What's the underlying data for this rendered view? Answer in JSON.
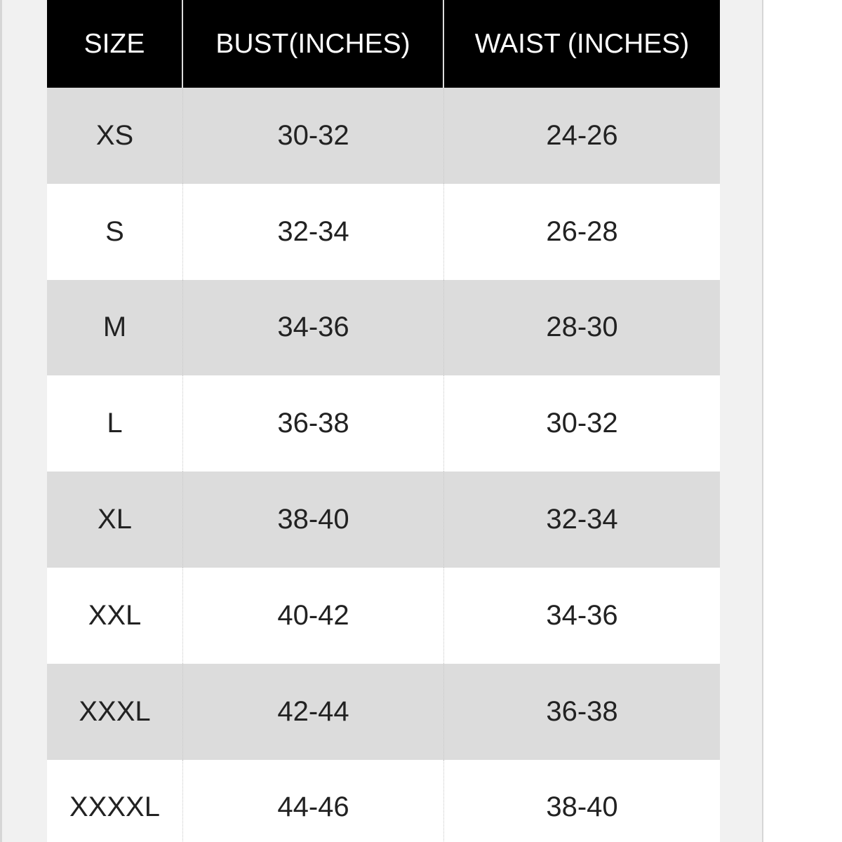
{
  "table": {
    "header": [
      "SIZE",
      "BUST(INCHES)",
      "WAIST (INCHES)"
    ],
    "rows": [
      [
        "XS",
        "30-32",
        "24-26"
      ],
      [
        "S",
        "32-34",
        "26-28"
      ],
      [
        "M",
        "34-36",
        "28-30"
      ],
      [
        "L",
        "36-38",
        "30-32"
      ],
      [
        "XL",
        "38-40",
        "32-34"
      ],
      [
        "XXL",
        "40-42",
        "34-36"
      ],
      [
        "XXXL",
        "42-44",
        "36-38"
      ],
      [
        "XXXXL",
        "44-46",
        "38-40"
      ]
    ]
  }
}
